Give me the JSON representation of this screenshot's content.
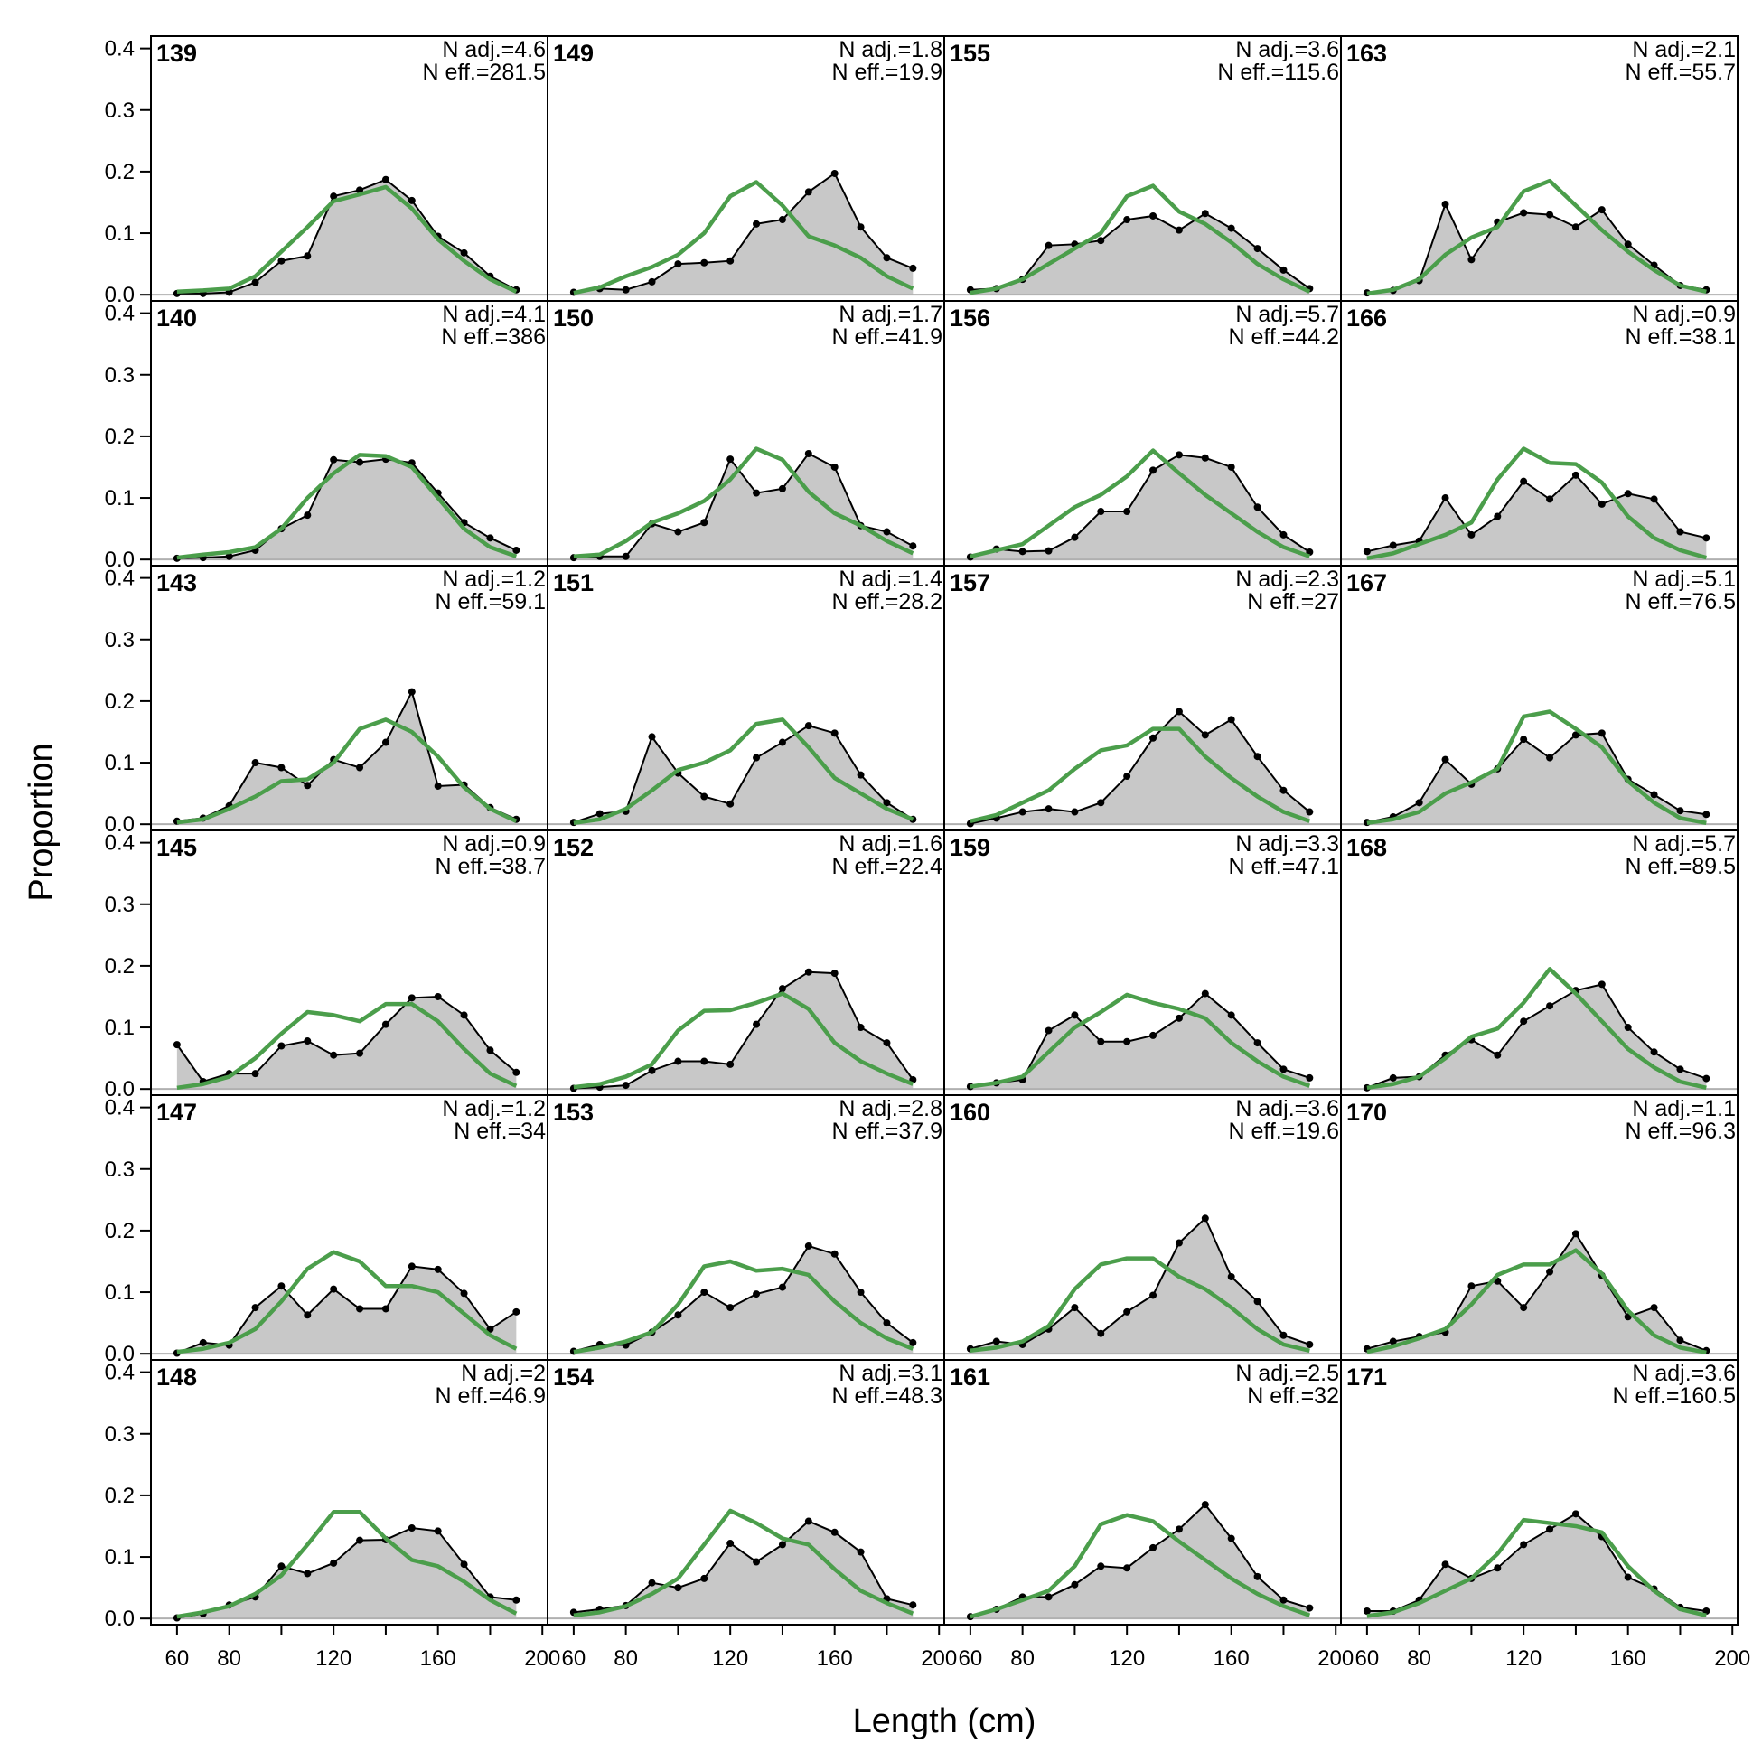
{
  "chart_data": {
    "type": "area",
    "xlabel": "Length (cm)",
    "ylabel": "Proportion",
    "xlim": [
      50,
      202
    ],
    "ylim": [
      -0.01,
      0.42
    ],
    "x_ticks": [
      60,
      80,
      120,
      160,
      200
    ],
    "y_ticks": [
      "0.0",
      "0.1",
      "0.2",
      "0.3",
      "0.4"
    ],
    "grid": false,
    "colors": {
      "observed_fill": "#c8c8c8",
      "observed_line": "#000000",
      "expected_line": "#4b9e4b",
      "zero_line": "#b0b0b0"
    },
    "x": [
      60,
      70,
      80,
      90,
      100,
      110,
      120,
      130,
      140,
      150,
      160,
      170,
      180,
      190
    ],
    "panels": [
      {
        "id": "139",
        "n_adj": "N adj.=4.6",
        "n_eff": "N eff.=281.5",
        "observed": [
          0.002,
          0.002,
          0.004,
          0.02,
          0.055,
          0.063,
          0.16,
          0.17,
          0.187,
          0.153,
          0.095,
          0.068,
          0.03,
          0.008
        ],
        "expected": [
          0.005,
          0.007,
          0.01,
          0.03,
          0.07,
          0.11,
          0.152,
          0.163,
          0.175,
          0.14,
          0.09,
          0.055,
          0.025,
          0.005
        ]
      },
      {
        "id": "140",
        "n_adj": "N adj.=4.1",
        "n_eff": "N eff.=386",
        "observed": [
          0.002,
          0.003,
          0.005,
          0.015,
          0.05,
          0.072,
          0.162,
          0.158,
          0.163,
          0.157,
          0.108,
          0.06,
          0.035,
          0.015
        ],
        "expected": [
          0.003,
          0.008,
          0.012,
          0.02,
          0.05,
          0.1,
          0.14,
          0.17,
          0.168,
          0.15,
          0.1,
          0.05,
          0.02,
          0.005
        ]
      },
      {
        "id": "143",
        "n_adj": "N adj.=1.2",
        "n_eff": "N eff.=59.1",
        "observed": [
          0.005,
          0.01,
          0.03,
          0.1,
          0.092,
          0.063,
          0.105,
          0.092,
          0.133,
          0.215,
          0.062,
          0.064,
          0.027,
          0.008
        ],
        "expected": [
          0.003,
          0.008,
          0.025,
          0.045,
          0.07,
          0.073,
          0.1,
          0.155,
          0.17,
          0.15,
          0.11,
          0.06,
          0.025,
          0.005
        ]
      },
      {
        "id": "145",
        "n_adj": "N adj.=0.9",
        "n_eff": "N eff.=38.7",
        "observed": [
          0.072,
          0.012,
          0.025,
          0.025,
          0.07,
          0.078,
          0.055,
          0.058,
          0.105,
          0.148,
          0.15,
          0.12,
          0.063,
          0.027
        ],
        "expected": [
          0.002,
          0.008,
          0.02,
          0.05,
          0.09,
          0.125,
          0.12,
          0.11,
          0.138,
          0.138,
          0.11,
          0.065,
          0.025,
          0.005
        ]
      },
      {
        "id": "147",
        "n_adj": "N adj.=1.2",
        "n_eff": "N eff.=34",
        "observed": [
          0.001,
          0.018,
          0.014,
          0.075,
          0.11,
          0.063,
          0.105,
          0.073,
          0.073,
          0.142,
          0.137,
          0.098,
          0.04,
          0.068
        ],
        "expected": [
          0.003,
          0.008,
          0.018,
          0.04,
          0.085,
          0.138,
          0.165,
          0.15,
          0.11,
          0.11,
          0.1,
          0.065,
          0.03,
          0.008
        ]
      },
      {
        "id": "148",
        "n_adj": "N adj.=2",
        "n_eff": "N eff.=46.9",
        "observed": [
          0.001,
          0.008,
          0.022,
          0.035,
          0.085,
          0.073,
          0.09,
          0.127,
          0.128,
          0.147,
          0.142,
          0.088,
          0.035,
          0.03
        ],
        "expected": [
          0.003,
          0.01,
          0.02,
          0.04,
          0.07,
          0.12,
          0.173,
          0.173,
          0.13,
          0.095,
          0.085,
          0.06,
          0.03,
          0.008
        ]
      },
      {
        "id": "149",
        "n_adj": "N adj.=1.8",
        "n_eff": "N eff.=19.9",
        "observed": [
          0.004,
          0.01,
          0.008,
          0.021,
          0.05,
          0.052,
          0.055,
          0.115,
          0.122,
          0.167,
          0.197,
          0.11,
          0.06,
          0.043
        ],
        "expected": [
          0.003,
          0.012,
          0.03,
          0.045,
          0.065,
          0.1,
          0.16,
          0.183,
          0.145,
          0.095,
          0.08,
          0.06,
          0.03,
          0.01
        ]
      },
      {
        "id": "150",
        "n_adj": "N adj.=1.7",
        "n_eff": "N eff.=41.9",
        "observed": [
          0.003,
          0.005,
          0.005,
          0.058,
          0.045,
          0.06,
          0.163,
          0.108,
          0.115,
          0.172,
          0.15,
          0.055,
          0.045,
          0.022
        ],
        "expected": [
          0.005,
          0.008,
          0.03,
          0.06,
          0.075,
          0.095,
          0.13,
          0.18,
          0.162,
          0.11,
          0.075,
          0.055,
          0.03,
          0.01
        ]
      },
      {
        "id": "151",
        "n_adj": "N adj.=1.4",
        "n_eff": "N eff.=28.2",
        "observed": [
          0.003,
          0.017,
          0.021,
          0.142,
          0.083,
          0.045,
          0.033,
          0.108,
          0.133,
          0.16,
          0.148,
          0.08,
          0.035,
          0.008
        ],
        "expected": [
          0.002,
          0.008,
          0.025,
          0.055,
          0.088,
          0.1,
          0.12,
          0.163,
          0.17,
          0.125,
          0.075,
          0.05,
          0.025,
          0.008
        ]
      },
      {
        "id": "152",
        "n_adj": "N adj.=1.6",
        "n_eff": "N eff.=22.4",
        "observed": [
          0.001,
          0.003,
          0.006,
          0.03,
          0.045,
          0.045,
          0.04,
          0.105,
          0.163,
          0.19,
          0.188,
          0.1,
          0.075,
          0.015
        ],
        "expected": [
          0.003,
          0.008,
          0.02,
          0.04,
          0.095,
          0.127,
          0.128,
          0.14,
          0.155,
          0.13,
          0.075,
          0.045,
          0.025,
          0.008
        ]
      },
      {
        "id": "153",
        "n_adj": "N adj.=2.8",
        "n_eff": "N eff.=37.9",
        "observed": [
          0.004,
          0.015,
          0.014,
          0.035,
          0.063,
          0.1,
          0.075,
          0.097,
          0.108,
          0.175,
          0.162,
          0.1,
          0.05,
          0.018
        ],
        "expected": [
          0.003,
          0.01,
          0.02,
          0.035,
          0.08,
          0.142,
          0.15,
          0.135,
          0.138,
          0.128,
          0.085,
          0.05,
          0.025,
          0.008
        ]
      },
      {
        "id": "154",
        "n_adj": "N adj.=3.1",
        "n_eff": "N eff.=48.3",
        "observed": [
          0.01,
          0.015,
          0.021,
          0.058,
          0.05,
          0.065,
          0.122,
          0.092,
          0.12,
          0.158,
          0.14,
          0.108,
          0.032,
          0.022
        ],
        "expected": [
          0.005,
          0.01,
          0.02,
          0.04,
          0.065,
          0.12,
          0.175,
          0.155,
          0.13,
          0.12,
          0.08,
          0.045,
          0.025,
          0.008
        ]
      },
      {
        "id": "155",
        "n_adj": "N adj.=3.6",
        "n_eff": "N eff.=115.6",
        "observed": [
          0.008,
          0.01,
          0.025,
          0.08,
          0.082,
          0.088,
          0.122,
          0.128,
          0.105,
          0.132,
          0.108,
          0.075,
          0.04,
          0.01
        ],
        "expected": [
          0.003,
          0.01,
          0.025,
          0.05,
          0.075,
          0.1,
          0.16,
          0.177,
          0.135,
          0.115,
          0.085,
          0.05,
          0.025,
          0.005
        ]
      },
      {
        "id": "156",
        "n_adj": "N adj.=5.7",
        "n_eff": "N eff.=44.2",
        "observed": [
          0.004,
          0.017,
          0.013,
          0.014,
          0.036,
          0.078,
          0.078,
          0.145,
          0.17,
          0.165,
          0.15,
          0.085,
          0.04,
          0.012
        ],
        "expected": [
          0.005,
          0.015,
          0.025,
          0.055,
          0.085,
          0.105,
          0.135,
          0.177,
          0.14,
          0.105,
          0.075,
          0.045,
          0.02,
          0.005
        ]
      },
      {
        "id": "157",
        "n_adj": "N adj.=2.3",
        "n_eff": "N eff.=27",
        "observed": [
          0.001,
          0.01,
          0.02,
          0.025,
          0.02,
          0.035,
          0.078,
          0.14,
          0.183,
          0.145,
          0.17,
          0.11,
          0.055,
          0.02
        ],
        "expected": [
          0.005,
          0.015,
          0.035,
          0.055,
          0.09,
          0.12,
          0.128,
          0.155,
          0.155,
          0.11,
          0.075,
          0.045,
          0.02,
          0.005
        ]
      },
      {
        "id": "159",
        "n_adj": "N adj.=3.3",
        "n_eff": "N eff.=47.1",
        "observed": [
          0.004,
          0.01,
          0.015,
          0.095,
          0.12,
          0.077,
          0.077,
          0.087,
          0.115,
          0.155,
          0.12,
          0.075,
          0.032,
          0.018
        ],
        "expected": [
          0.004,
          0.01,
          0.02,
          0.06,
          0.1,
          0.125,
          0.153,
          0.14,
          0.13,
          0.115,
          0.075,
          0.045,
          0.02,
          0.005
        ]
      },
      {
        "id": "160",
        "n_adj": "N adj.=3.6",
        "n_eff": "N eff.=19.6",
        "observed": [
          0.008,
          0.02,
          0.015,
          0.04,
          0.075,
          0.033,
          0.068,
          0.095,
          0.18,
          0.22,
          0.125,
          0.085,
          0.03,
          0.015
        ],
        "expected": [
          0.005,
          0.01,
          0.02,
          0.045,
          0.105,
          0.145,
          0.155,
          0.155,
          0.125,
          0.105,
          0.075,
          0.04,
          0.015,
          0.005
        ]
      },
      {
        "id": "161",
        "n_adj": "N adj.=2.5",
        "n_eff": "N eff.=32",
        "observed": [
          0.003,
          0.015,
          0.035,
          0.035,
          0.055,
          0.085,
          0.082,
          0.115,
          0.145,
          0.185,
          0.13,
          0.068,
          0.03,
          0.017
        ],
        "expected": [
          0.003,
          0.015,
          0.03,
          0.045,
          0.085,
          0.153,
          0.168,
          0.158,
          0.125,
          0.095,
          0.065,
          0.04,
          0.02,
          0.005
        ]
      },
      {
        "id": "163",
        "n_adj": "N adj.=2.1",
        "n_eff": "N eff.=55.7",
        "observed": [
          0.003,
          0.007,
          0.023,
          0.147,
          0.057,
          0.118,
          0.133,
          0.13,
          0.11,
          0.138,
          0.082,
          0.048,
          0.015,
          0.008
        ],
        "expected": [
          0.002,
          0.008,
          0.025,
          0.065,
          0.093,
          0.11,
          0.168,
          0.185,
          0.145,
          0.105,
          0.07,
          0.04,
          0.015,
          0.005
        ]
      },
      {
        "id": "166",
        "n_adj": "N adj.=0.9",
        "n_eff": "N eff.=38.1",
        "observed": [
          0.013,
          0.023,
          0.03,
          0.1,
          0.04,
          0.07,
          0.127,
          0.098,
          0.137,
          0.09,
          0.107,
          0.098,
          0.045,
          0.035
        ],
        "expected": [
          0.002,
          0.01,
          0.025,
          0.04,
          0.06,
          0.13,
          0.18,
          0.157,
          0.155,
          0.125,
          0.07,
          0.035,
          0.015,
          0.003
        ]
      },
      {
        "id": "167",
        "n_adj": "N adj.=5.1",
        "n_eff": "N eff.=76.5",
        "observed": [
          0.003,
          0.012,
          0.035,
          0.105,
          0.065,
          0.09,
          0.138,
          0.108,
          0.145,
          0.148,
          0.073,
          0.048,
          0.022,
          0.016
        ],
        "expected": [
          0.002,
          0.008,
          0.02,
          0.05,
          0.068,
          0.09,
          0.175,
          0.183,
          0.155,
          0.125,
          0.07,
          0.035,
          0.01,
          0.002
        ]
      },
      {
        "id": "168",
        "n_adj": "N adj.=5.7",
        "n_eff": "N eff.=89.5",
        "observed": [
          0.002,
          0.018,
          0.02,
          0.055,
          0.08,
          0.055,
          0.11,
          0.135,
          0.16,
          0.17,
          0.1,
          0.06,
          0.032,
          0.017
        ],
        "expected": [
          0.002,
          0.008,
          0.02,
          0.05,
          0.085,
          0.098,
          0.14,
          0.195,
          0.155,
          0.11,
          0.065,
          0.035,
          0.012,
          0.002
        ]
      },
      {
        "id": "170",
        "n_adj": "N adj.=1.1",
        "n_eff": "N eff.=96.3",
        "observed": [
          0.008,
          0.02,
          0.028,
          0.035,
          0.11,
          0.118,
          0.075,
          0.133,
          0.195,
          0.127,
          0.06,
          0.075,
          0.022,
          0.005
        ],
        "expected": [
          0.003,
          0.012,
          0.025,
          0.04,
          0.08,
          0.128,
          0.145,
          0.145,
          0.168,
          0.13,
          0.07,
          0.03,
          0.01,
          0.002
        ]
      },
      {
        "id": "171",
        "n_adj": "N adj.=3.6",
        "n_eff": "N eff.=160.5",
        "observed": [
          0.012,
          0.012,
          0.03,
          0.088,
          0.065,
          0.082,
          0.12,
          0.145,
          0.17,
          0.133,
          0.067,
          0.048,
          0.018,
          0.012
        ],
        "expected": [
          0.004,
          0.01,
          0.025,
          0.045,
          0.065,
          0.105,
          0.16,
          0.155,
          0.15,
          0.14,
          0.085,
          0.045,
          0.015,
          0.005
        ]
      }
    ]
  }
}
